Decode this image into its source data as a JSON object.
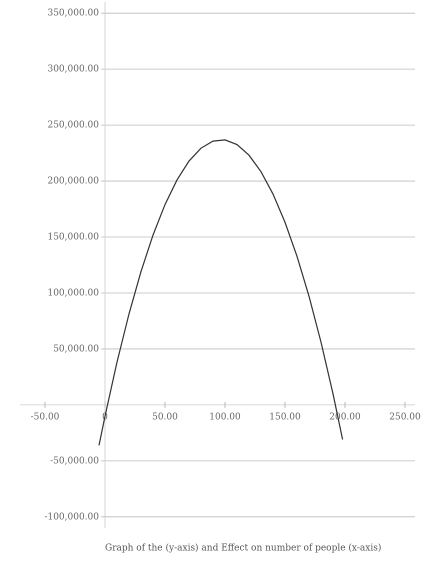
{
  "chart_data": {
    "type": "line",
    "caption": "Graph of the (y-axis) and Effect on number of people (x-axis)",
    "x": [
      -5,
      0,
      10,
      20,
      30,
      40,
      50,
      60,
      70,
      80,
      90,
      100,
      110,
      120,
      130,
      140,
      150,
      160,
      170,
      180,
      190,
      198
    ],
    "values": [
      -36200,
      -10100,
      38200,
      81300,
      119100,
      151700,
      179000,
      201000,
      217900,
      229400,
      235700,
      236800,
      232600,
      223100,
      208400,
      188400,
      163200,
      132800,
      97100,
      56100,
      9900,
      -30900
    ],
    "color": "#333333",
    "xlim": [
      -60,
      255
    ],
    "xticks": [
      {
        "value": -50,
        "label": "-50.00"
      },
      0,
      {
        "value": 50,
        "label": "50.00"
      },
      {
        "value": 100,
        "label": "100.00"
      },
      {
        "value": 150,
        "label": "150.00"
      },
      {
        "value": 200,
        "label": "200.00"
      },
      {
        "value": 250,
        "label": "250.00"
      }
    ],
    "ylim": [
      -110000,
      360000
    ],
    "yticks": [
      {
        "value": -100000,
        "label": "-100,000.00"
      },
      {
        "value": -50000,
        "label": "-50,000.00"
      },
      {
        "value": 50000,
        "label": "50,000.00"
      },
      {
        "value": 100000,
        "label": "100,000.00"
      },
      {
        "value": 150000,
        "label": "150,000.00"
      },
      {
        "value": 200000,
        "label": "200,000.00"
      },
      {
        "value": 250000,
        "label": "250,000.00"
      },
      {
        "value": 300000,
        "label": "300,000.00"
      },
      {
        "value": 350000,
        "label": "350,000.00"
      }
    ],
    "grid": true
  }
}
